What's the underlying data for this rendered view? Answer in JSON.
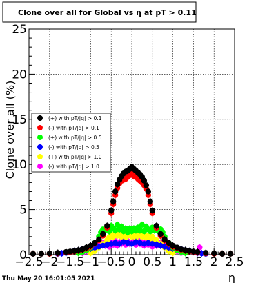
{
  "chart_data": {
    "type": "scatter",
    "title": "Clone  over all for Global vs   η at pT > 0.11",
    "xlabel": "η",
    "ylabel": "Clone  over all (%)",
    "xlim": [
      -2.5,
      2.5
    ],
    "ylim": [
      0,
      25
    ],
    "x_ticks": [
      "−2.5",
      "−2",
      "−1.5",
      "−1",
      "−0.5",
      "0",
      "0.5",
      "1",
      "1.5",
      "2",
      "2.5"
    ],
    "y_ticks": [
      "0",
      "5",
      "10",
      "15",
      "20",
      "25"
    ],
    "grid": true,
    "legend_position": "middle-left",
    "timestamp": "Thu May 20 16:01:05 2021",
    "series": [
      {
        "name": "(+) with pT/|q| > 0.1",
        "color": "#000000",
        "x": [
          -2.4,
          -2.2,
          -2.0,
          -1.8,
          -1.6,
          -1.5,
          -1.4,
          -1.3,
          -1.2,
          -1.1,
          -1.0,
          -0.9,
          -0.8,
          -0.7,
          -0.6,
          -0.5,
          -0.45,
          -0.4,
          -0.35,
          -0.3,
          -0.25,
          -0.2,
          -0.15,
          -0.1,
          -0.05,
          0.0,
          0.05,
          0.1,
          0.15,
          0.2,
          0.25,
          0.3,
          0.35,
          0.4,
          0.45,
          0.5,
          0.6,
          0.7,
          0.8,
          0.9,
          1.0,
          1.1,
          1.2,
          1.3,
          1.4,
          1.5,
          1.6,
          1.8,
          2.0,
          2.2,
          2.4
        ],
        "y": [
          0.1,
          0.1,
          0.15,
          0.2,
          0.3,
          0.35,
          0.4,
          0.5,
          0.6,
          0.8,
          1.0,
          1.3,
          1.7,
          2.3,
          3.2,
          4.9,
          5.9,
          7.0,
          7.8,
          8.3,
          8.7,
          9.0,
          9.2,
          9.3,
          9.5,
          9.7,
          9.5,
          9.3,
          9.1,
          8.9,
          8.6,
          8.2,
          7.7,
          7.0,
          5.9,
          4.9,
          3.2,
          2.3,
          1.7,
          1.3,
          1.0,
          0.8,
          0.6,
          0.5,
          0.4,
          0.35,
          0.3,
          0.2,
          0.15,
          0.1,
          0.1
        ]
      },
      {
        "name": "(-) with pT/|q| > 0.1",
        "color": "#ff0000",
        "x": [
          -2.4,
          -2.2,
          -2.0,
          -1.8,
          -1.6,
          -1.5,
          -1.4,
          -1.3,
          -1.2,
          -1.1,
          -1.0,
          -0.9,
          -0.8,
          -0.7,
          -0.6,
          -0.5,
          -0.45,
          -0.4,
          -0.35,
          -0.3,
          -0.25,
          -0.2,
          -0.15,
          -0.1,
          -0.05,
          0.0,
          0.05,
          0.1,
          0.15,
          0.2,
          0.25,
          0.3,
          0.35,
          0.4,
          0.45,
          0.5,
          0.6,
          0.7,
          0.8,
          0.9,
          1.0,
          1.1,
          1.2,
          1.3,
          1.4,
          1.5,
          1.6,
          1.8,
          2.0,
          2.2,
          2.4
        ],
        "y": [
          0.1,
          0.1,
          0.1,
          0.15,
          0.25,
          0.3,
          0.35,
          0.45,
          0.55,
          0.7,
          0.9,
          1.2,
          1.6,
          2.1,
          3.0,
          4.6,
          5.6,
          6.6,
          7.4,
          7.9,
          8.2,
          8.3,
          8.4,
          8.6,
          8.8,
          9.0,
          8.7,
          8.6,
          8.4,
          8.2,
          8.0,
          7.7,
          7.3,
          6.6,
          5.6,
          4.6,
          3.0,
          2.1,
          1.6,
          1.2,
          0.9,
          0.7,
          0.55,
          0.45,
          0.35,
          0.3,
          0.25,
          0.15,
          0.1,
          0.1,
          0.1
        ]
      },
      {
        "name": "(+) with pT/|q| > 0.5",
        "color": "#00ff00",
        "x": [
          -1.3,
          -1.2,
          -1.1,
          -1.0,
          -0.9,
          -0.8,
          -0.75,
          -0.7,
          -0.65,
          -0.6,
          -0.55,
          -0.5,
          -0.45,
          -0.4,
          -0.35,
          -0.3,
          -0.25,
          -0.2,
          -0.15,
          -0.1,
          -0.05,
          0.0,
          0.05,
          0.1,
          0.15,
          0.2,
          0.25,
          0.3,
          0.35,
          0.4,
          0.45,
          0.5,
          0.55,
          0.6,
          0.65,
          0.7,
          0.75,
          0.8,
          0.9,
          1.0,
          1.1,
          1.2,
          1.3
        ],
        "y": [
          0.2,
          0.3,
          0.5,
          0.8,
          1.3,
          2.0,
          2.5,
          2.8,
          2.7,
          3.0,
          2.6,
          3.2,
          2.9,
          2.7,
          3.3,
          2.8,
          3.1,
          2.6,
          2.9,
          2.5,
          2.9,
          2.6,
          2.9,
          2.7,
          3.0,
          2.7,
          3.3,
          2.6,
          3.1,
          2.8,
          2.6,
          3.0,
          2.7,
          2.9,
          2.6,
          2.8,
          2.5,
          2.0,
          1.3,
          0.8,
          0.5,
          0.3,
          0.2
        ]
      },
      {
        "name": "(-) with pT/|q| > 0.5",
        "color": "#0000ff",
        "x": [
          -1.8,
          -1.7,
          -1.6,
          -1.5,
          -1.4,
          -1.3,
          -1.2,
          -1.1,
          -1.0,
          -0.9,
          -0.8,
          -0.7,
          -0.6,
          -0.5,
          -0.4,
          -0.3,
          -0.2,
          -0.1,
          0.0,
          0.1,
          0.2,
          0.3,
          0.4,
          0.5,
          0.6,
          0.7,
          0.8,
          0.9,
          1.0,
          1.1,
          1.2,
          1.3,
          1.4,
          1.5,
          1.6,
          1.7,
          1.8
        ],
        "y": [
          0.1,
          0.15,
          0.2,
          0.3,
          0.4,
          0.5,
          0.6,
          0.5,
          0.7,
          0.8,
          0.9,
          1.0,
          1.1,
          1.2,
          1.3,
          1.2,
          1.4,
          1.3,
          1.2,
          1.4,
          1.3,
          1.2,
          1.3,
          1.2,
          1.1,
          1.0,
          0.9,
          0.8,
          0.7,
          0.5,
          0.6,
          0.5,
          0.4,
          0.3,
          0.2,
          0.15,
          0.1
        ]
      },
      {
        "name": "(+) with pT/|q| > 1.0",
        "color": "#ffff00",
        "x": [
          -1.0,
          -0.9,
          -0.8,
          -0.7,
          -0.6,
          -0.55,
          -0.5,
          -0.45,
          -0.4,
          -0.35,
          -0.3,
          -0.25,
          -0.2,
          -0.15,
          -0.1,
          -0.05,
          0.0,
          0.05,
          0.1,
          0.15,
          0.2,
          0.25,
          0.3,
          0.35,
          0.4,
          0.45,
          0.5,
          0.55,
          0.6,
          0.7,
          0.8,
          0.9,
          1.0
        ],
        "y": [
          0.2,
          0.4,
          0.8,
          1.2,
          1.6,
          1.9,
          2.2,
          2.0,
          2.4,
          2.1,
          2.3,
          2.0,
          2.2,
          1.9,
          2.1,
          2.3,
          2.0,
          2.2,
          1.9,
          2.1,
          2.3,
          2.0,
          2.2,
          1.9,
          2.1,
          1.8,
          2.0,
          1.7,
          1.6,
          1.2,
          0.8,
          0.4,
          0.2
        ]
      },
      {
        "name": "(-) with pT/|q| > 1.0",
        "color": "#ff00ff",
        "x": [
          -1.2,
          -1.1,
          -1.0,
          -0.9,
          -0.8,
          -0.7,
          -0.65,
          -0.6,
          -0.55,
          -0.5,
          -0.45,
          -0.4,
          -0.35,
          -0.3,
          -0.25,
          -0.2,
          -0.15,
          -0.1,
          -0.05,
          0.0,
          0.05,
          0.1,
          0.15,
          0.2,
          0.25,
          0.3,
          0.35,
          0.4,
          0.45,
          0.5,
          0.55,
          0.6,
          0.65,
          0.7,
          0.8,
          0.9,
          1.0,
          1.1,
          1.2,
          1.65
        ],
        "y": [
          0.2,
          0.4,
          0.6,
          0.9,
          1.1,
          1.3,
          1.0,
          1.4,
          0.9,
          1.3,
          1.1,
          1.5,
          1.0,
          1.4,
          1.2,
          1.6,
          1.1,
          1.5,
          1.2,
          1.3,
          1.5,
          1.1,
          1.6,
          1.2,
          1.4,
          1.0,
          1.5,
          1.1,
          1.3,
          0.9,
          1.4,
          1.0,
          1.2,
          1.3,
          1.1,
          0.9,
          0.6,
          0.4,
          0.2,
          0.8
        ]
      }
    ]
  }
}
